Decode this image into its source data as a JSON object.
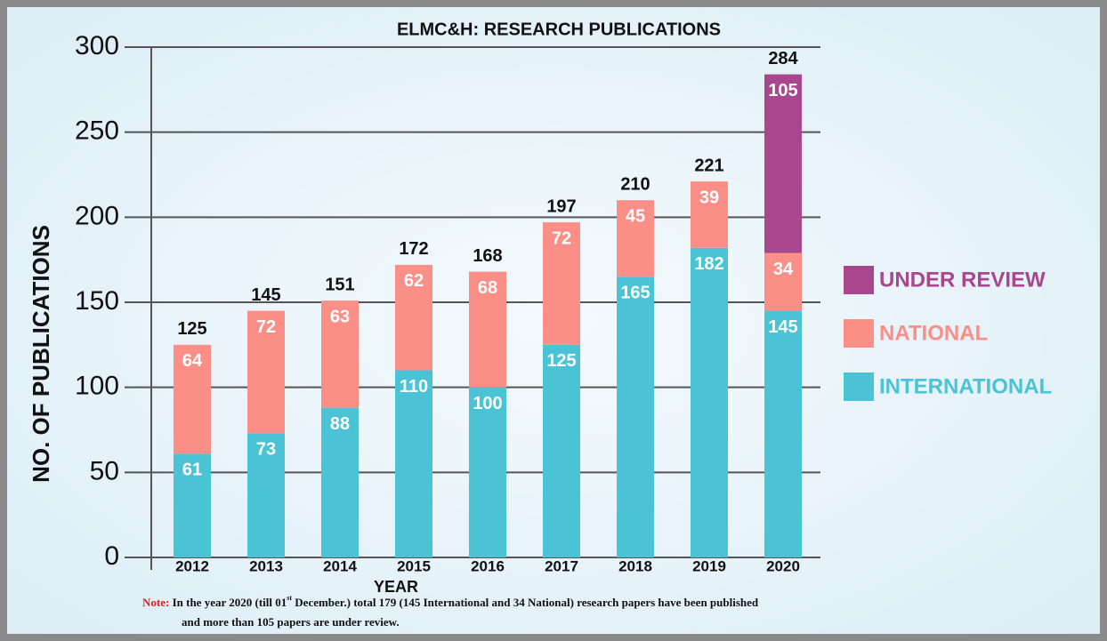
{
  "chart_data": {
    "type": "bar",
    "stacked": true,
    "title": "ELMC&H: RESEARCH PUBLICATIONS",
    "x_label": "YEAR",
    "y_label": "NO. OF PUBLICATIONS",
    "categories": [
      "2012",
      "2013",
      "2014",
      "2015",
      "2016",
      "2017",
      "2018",
      "2019",
      "2020"
    ],
    "series": [
      {
        "name": "INTERNATIONAL",
        "color": "#4ac3d4",
        "values": [
          61,
          73,
          88,
          110,
          100,
          125,
          165,
          182,
          145
        ]
      },
      {
        "name": "NATIONAL",
        "color": "#fb8f87",
        "values": [
          64,
          72,
          63,
          62,
          68,
          72,
          45,
          39,
          34
        ]
      },
      {
        "name": "UNDER REVIEW",
        "color": "#a8478d",
        "values": [
          null,
          null,
          null,
          null,
          null,
          null,
          null,
          null,
          105
        ]
      }
    ],
    "totals": [
      125,
      145,
      151,
      172,
      168,
      197,
      210,
      221,
      284
    ],
    "ylim": [
      0,
      300
    ],
    "yticks": [
      0,
      50,
      100,
      150,
      200,
      250,
      300
    ],
    "grid": true,
    "legend": "right",
    "note": {
      "label": "Note:",
      "line1_before": "In the year 2020 (till 01",
      "sup": "st",
      "line1_after": " December.) total 179 (145 International and 34 National) research papers have been published",
      "line2": "and more than 105 papers are under review."
    }
  }
}
